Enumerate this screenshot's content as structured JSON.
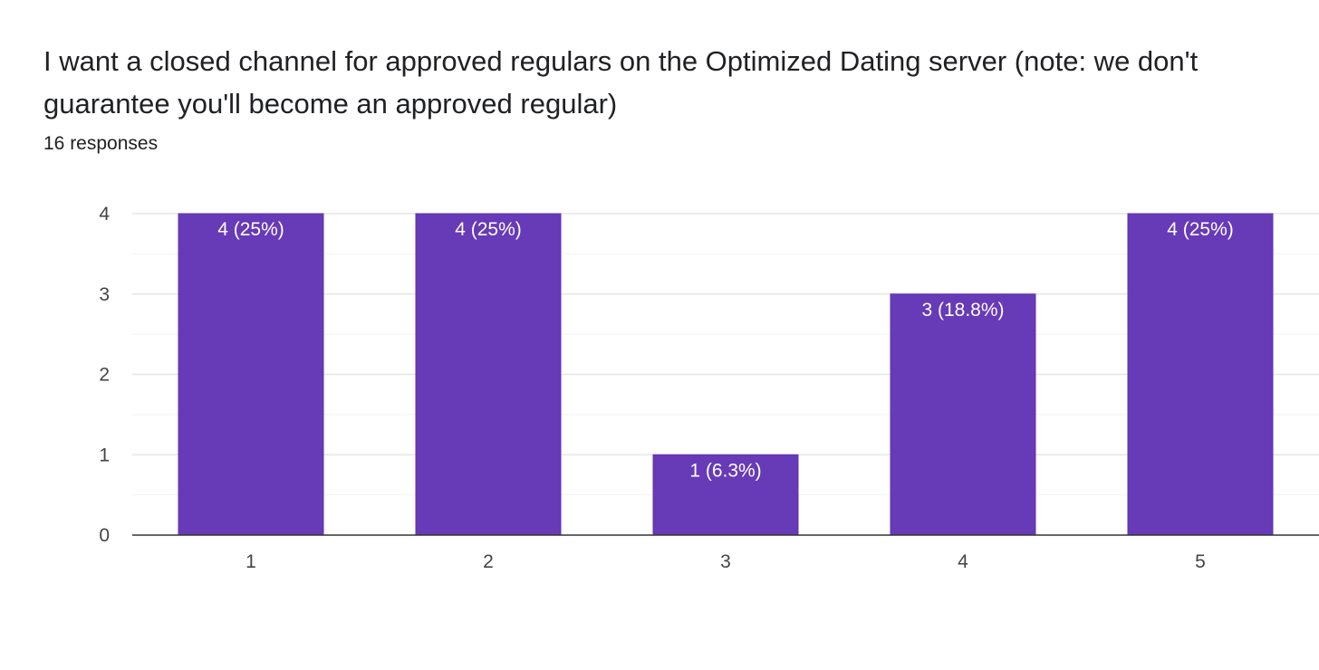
{
  "question": {
    "title": "I want a closed channel for approved regulars on the Optimized Dating server (note: we don't guarantee you'll become an approved regular)",
    "response_count": "16 responses"
  },
  "colors": {
    "bar": "#673ab7",
    "bar_border": "#5e35b1"
  },
  "chart_data": {
    "type": "bar",
    "title": "I want a closed channel for approved regulars on the Optimized Dating server (note: we don't guarantee you'll become an approved regular)",
    "xlabel": "",
    "ylabel": "",
    "categories": [
      "1",
      "2",
      "3",
      "4",
      "5"
    ],
    "values": [
      4,
      4,
      1,
      3,
      4
    ],
    "data_labels": [
      "4 (25%)",
      "4 (25%)",
      "1 (6.3%)",
      "3 (18.8%)",
      "4 (25%)"
    ],
    "ylim": [
      0,
      4
    ],
    "yticks": [
      "0",
      "1",
      "2",
      "3",
      "4"
    ],
    "grid": true,
    "legend": "none"
  }
}
